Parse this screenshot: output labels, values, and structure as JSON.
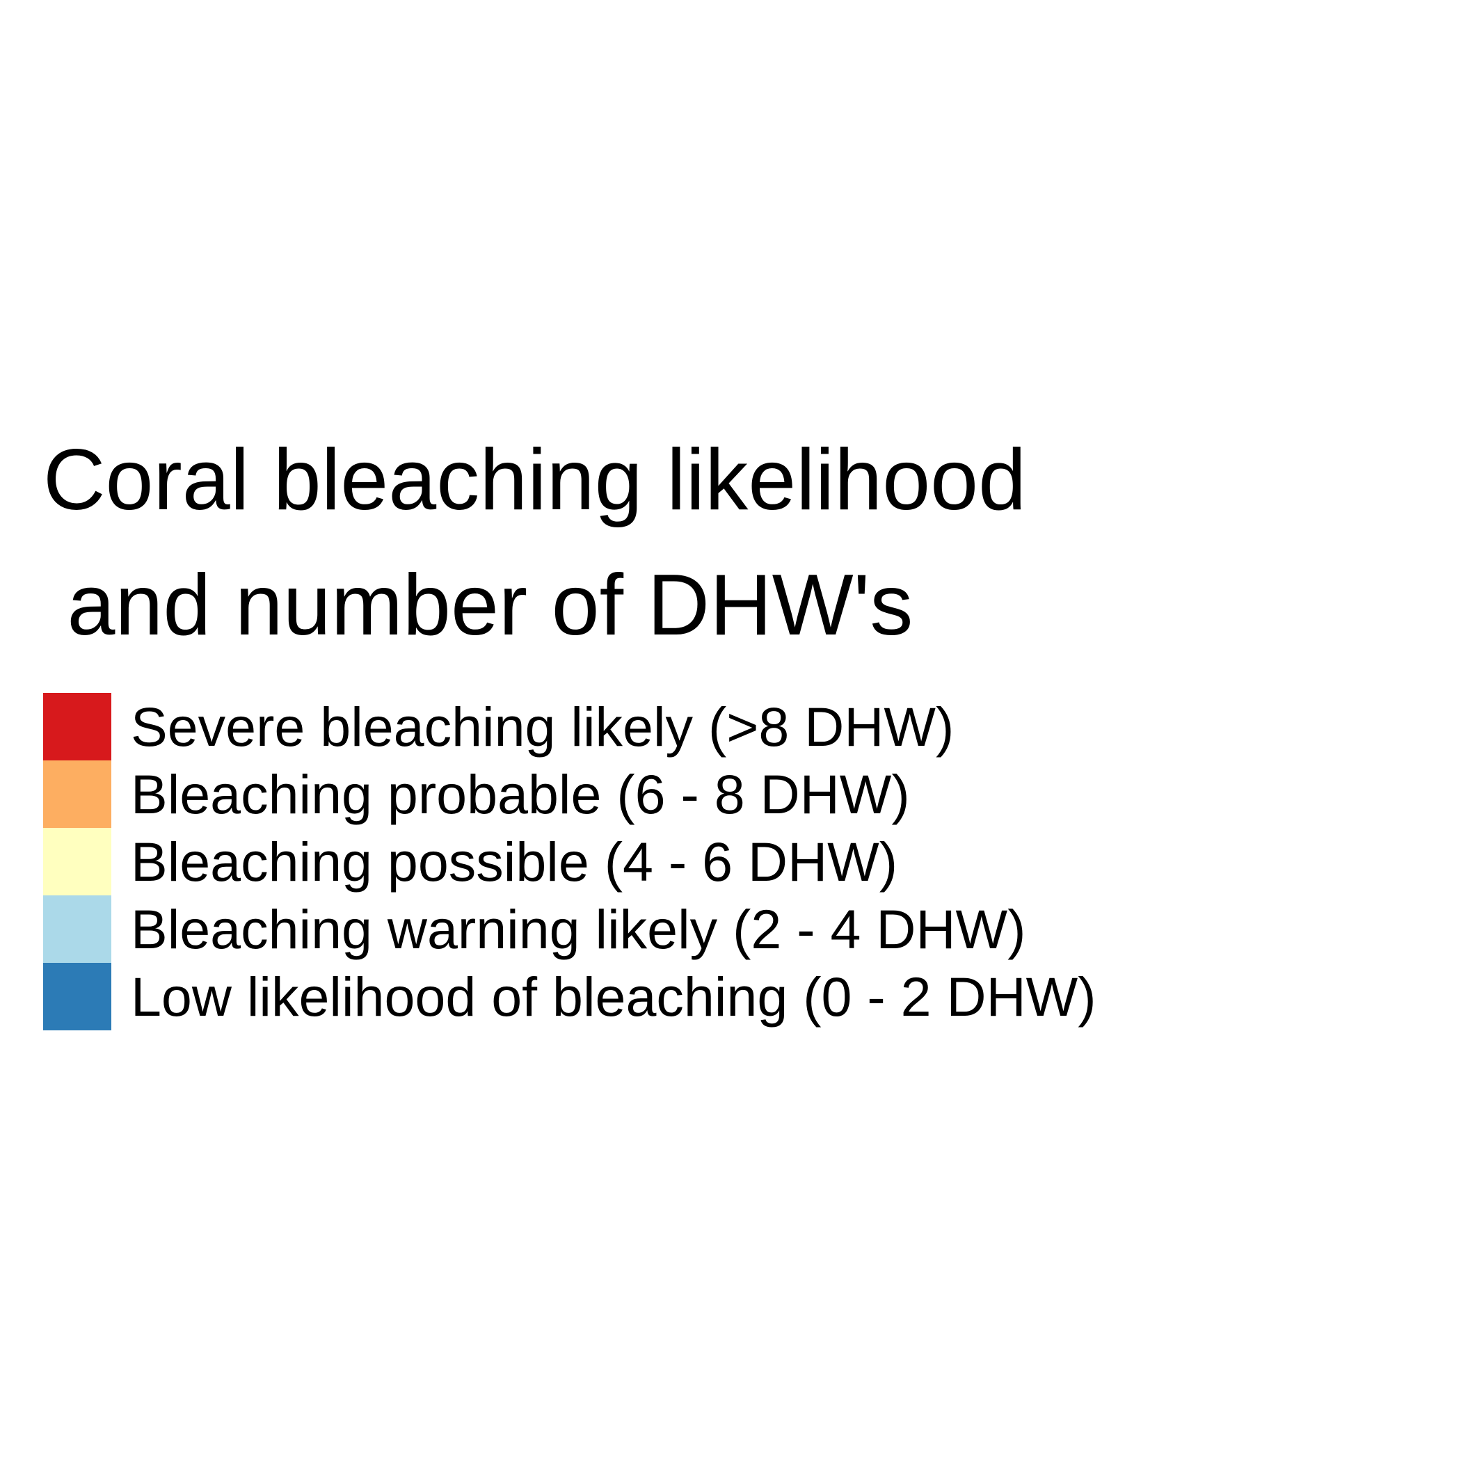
{
  "legend": {
    "title_line1": "Coral bleaching likelihood",
    "title_line2": " and number of DHW's",
    "items": [
      {
        "label": "Severe bleaching likely (>8 DHW)",
        "color": "#d7191c"
      },
      {
        "label": "Bleaching probable (6 - 8 DHW)",
        "color": "#fdae61"
      },
      {
        "label": "Bleaching possible (4 - 6 DHW)",
        "color": "#ffffbf"
      },
      {
        "label": "Bleaching warning likely (2 - 4 DHW)",
        "color": "#abd9e9"
      },
      {
        "label": "Low likelihood of bleaching (0 - 2 DHW)",
        "color": "#2c7bb6"
      }
    ]
  }
}
